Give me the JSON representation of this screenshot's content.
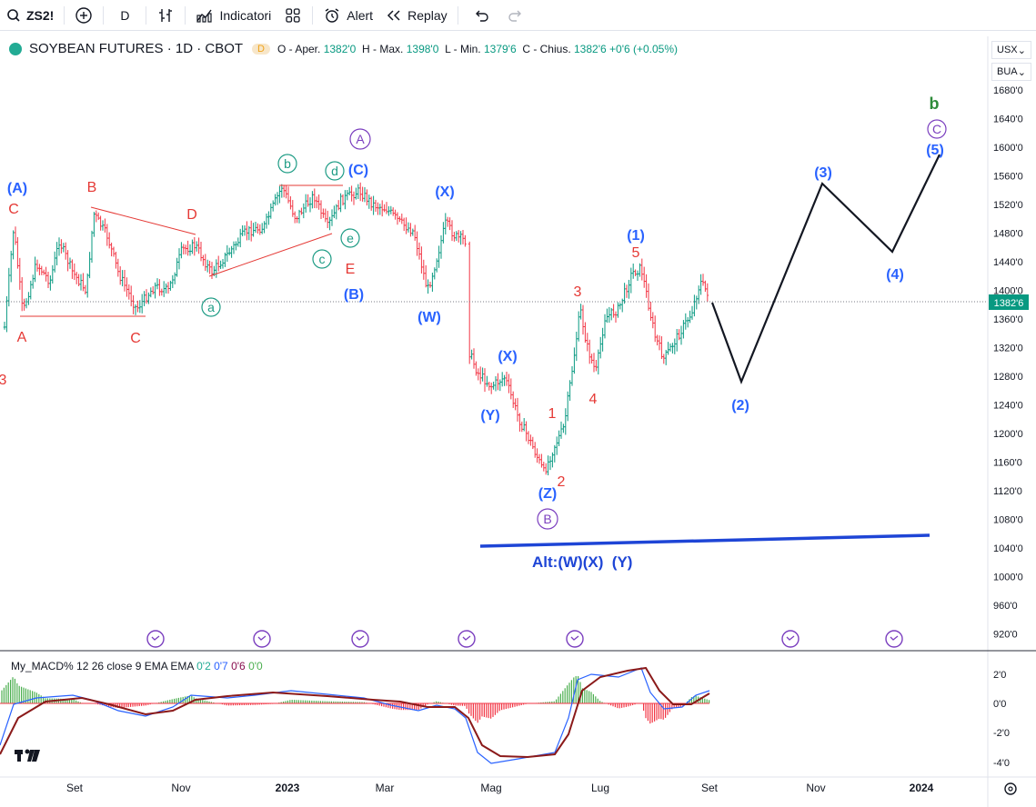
{
  "toolbar": {
    "symbol": "ZS2!",
    "interval": "D",
    "indicators_label": "Indicatori",
    "alert_label": "Alert",
    "replay_label": "Replay"
  },
  "legend": {
    "title": "SOYBEAN FUTURES · 1D · CBOT",
    "badge": "D",
    "open_label": "O - Aper.",
    "open": "1382'0",
    "high_label": "H - Max.",
    "high": "1398'0",
    "low_label": "L - Min.",
    "low": "1379'6",
    "close_label": "C - Chius.",
    "close": "1382'6",
    "change": "+0'6 (+0.05%)"
  },
  "price_axis": {
    "currency": "USX",
    "unit": "BUA",
    "ticks": [
      "1680'0",
      "1640'0",
      "1600'0",
      "1560'0",
      "1520'0",
      "1480'0",
      "1440'0",
      "1400'0",
      "1360'0",
      "1320'0",
      "1280'0",
      "1240'0",
      "1200'0",
      "1160'0",
      "1120'0",
      "1080'0",
      "1040'0",
      "1000'0",
      "960'0",
      "920'0"
    ],
    "last_price": "1382'6"
  },
  "time_axis": {
    "ticks": [
      "Set",
      "Nov",
      "2023",
      "Mar",
      "Mag",
      "Lug",
      "Set",
      "Nov",
      "2024"
    ]
  },
  "macd": {
    "name": "My_MACD%",
    "params": "12 26 close 9 EMA EMA",
    "v1": "0'2",
    "v2": "0'7",
    "v3": "0'6",
    "v4": "0'0",
    "ticks": [
      "2'0",
      "0'0",
      "-2'0",
      "-4'0"
    ]
  },
  "wave_labels": {
    "A_paren": "(A)",
    "C_red": "C",
    "A_red": "A",
    "B_red": "B",
    "C_red2": "C",
    "D_red": "D",
    "E_red": "E",
    "a_circ": "a",
    "b_circ": "b",
    "c_circ": "c",
    "d_circ": "d",
    "e_circ": "e",
    "A_circ": "A",
    "C_paren": "(C)",
    "B_paren": "(B)",
    "X_paren": "(X)",
    "W_paren": "(W)",
    "X_paren2": "(X)",
    "Y_paren": "(Y)",
    "Z_paren": "(Z)",
    "B_circ": "B",
    "n1": "1",
    "n2": "2",
    "n3": "3",
    "n4": "4",
    "n5": "5",
    "w1": "(1)",
    "w2": "(2)",
    "w3": "(3)",
    "w4": "(4)",
    "w5": "(5)",
    "C_circ": "C",
    "b_green": "b",
    "alt": "Alt:(W)(X)  (Y)",
    "edge_red": "3"
  },
  "colors": {
    "up": "#089981",
    "down": "#f23645",
    "blue_label": "#2962ff",
    "red_label": "#e53935",
    "teal_label": "#1e9c85",
    "purple_label": "#7b3fbf",
    "macd_line": "#2962ff",
    "signal_line": "#8b1a1a"
  }
}
